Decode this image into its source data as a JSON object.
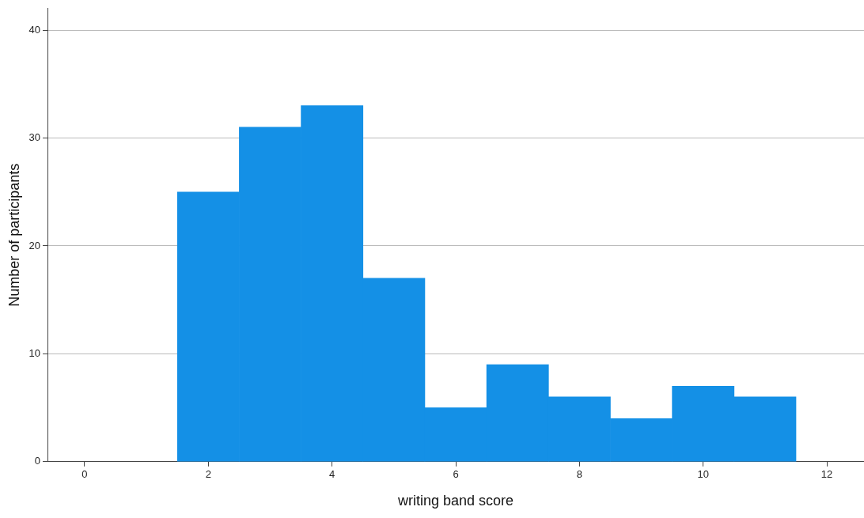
{
  "chart_data": {
    "type": "histogram",
    "xlabel": "writing band score",
    "ylabel": "Number of participants",
    "bins": [
      1.5,
      2.5,
      3.5,
      4.5,
      5.5,
      6.5,
      7.5,
      8.5,
      9.5,
      10.5,
      11.5
    ],
    "values": [
      25,
      31,
      33,
      17,
      5,
      9,
      6,
      4,
      7,
      6
    ],
    "color": "#1490e6",
    "xlim": [
      -0.6,
      12.6
    ],
    "xticks": [
      0,
      2,
      4,
      6,
      8,
      10,
      12
    ],
    "ylim": [
      0,
      42
    ],
    "yticks": [
      0,
      10,
      20,
      30,
      40
    ],
    "grid": "y",
    "legend": false
  }
}
